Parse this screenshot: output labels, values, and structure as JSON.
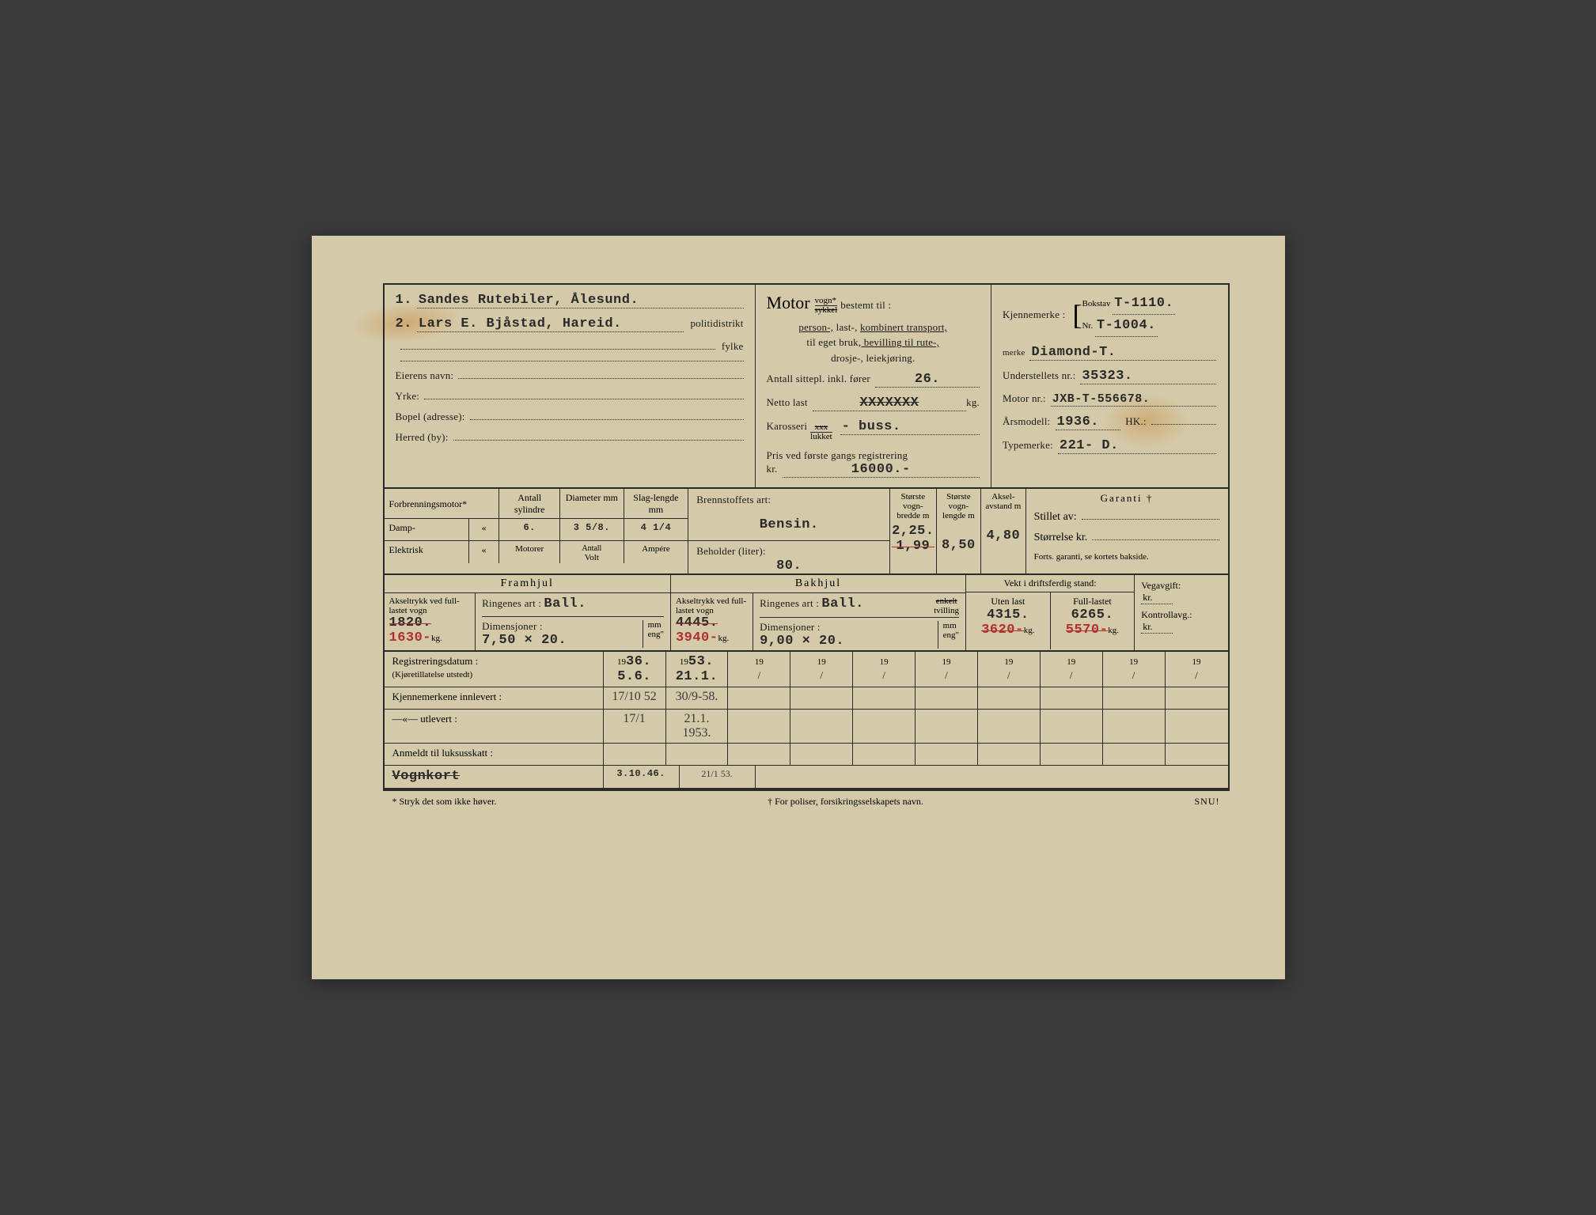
{
  "owners": {
    "line1_num": "1.",
    "line1": "Sandes Rutebiler, Ålesund.",
    "line2_num": "2.",
    "line2": "Lars E. Bjåstad, Hareid."
  },
  "left_labels": {
    "politidistrikt": "politidistrikt",
    "fylke": "fylke",
    "eierens_navn": "Eierens navn:",
    "yrke": "Yrke:",
    "bopel": "Bopel (adresse):",
    "herred": "Herred (by):"
  },
  "motor": {
    "heading": "Motor",
    "vogn": "vogn*",
    "sykkel": "sykkel",
    "bestemt": " bestemt til :",
    "line1a": "person-,",
    "line1b": " last-, ",
    "line1c": "kombinert transport,",
    "line2a": "til eget bruk,",
    "line2b": " bevilling til rute-,",
    "line3": "drosje-, leiekjøring.",
    "antall_sitte_label": "Antall sittepl. inkl. fører",
    "antall_sitte": "26.",
    "netto_label": "Netto last",
    "netto_x": "XXXXXXX",
    "netto_unit": "kg.",
    "karosseri_label": "Karosseri",
    "karosseri_top": "xxx",
    "karosseri_bot": "lukket",
    "karosseri_val": "- buss.",
    "pris_label": "Pris ved første gangs registrering",
    "pris_kr": "kr.",
    "pris_val": "16000.-"
  },
  "right": {
    "kjennemerke_label": "Kjennemerke :",
    "bokstav_label": "Bokstav",
    "bokstav": "T-1110.",
    "nr_label": "Nr.",
    "nr": "T-1004.",
    "merke_label": "merke",
    "merke": "Diamond-T.",
    "understell_label": "Understellets nr.:",
    "understell": "35323.",
    "motornr_label": "Motor nr.:",
    "motornr": "JXB-T-556678.",
    "arsmodell_label": "Årsmodell:",
    "arsmodell": "1936.",
    "hk_label": "HK.:",
    "typemerke_label": "Typemerke:",
    "typemerke": "221- D."
  },
  "engine": {
    "forbrennings": "Forbrenningsmotor*",
    "damp": "Damp-",
    "elektrisk": "Elektrisk",
    "quote": "«",
    "antall_syl": "Antall sylindre",
    "diameter": "Diameter mm",
    "slag": "Slag-lengde mm",
    "motorer": "Motorer",
    "antall": "Antall",
    "volt": "Volt",
    "ampere": "Ampére",
    "syl_val": "6.",
    "dia_val": "3 5/8.",
    "slag_val": "4 1/4",
    "brennstoff_label": "Brennstoffets art:",
    "brennstoff": "Bensin.",
    "beholder_label": "Beholder (liter):",
    "beholder": "80.",
    "bredde_label": "Største vogn-bredde m",
    "lengde_label": "Største vogn-lengde m",
    "aksel_label": "Aksel-avstand m",
    "bredde1": "2,25.",
    "bredde2": "1,99",
    "lengde": "8,50",
    "aksel": "4,80",
    "garanti": "Garanti †",
    "stillet": "Stillet av:",
    "storrelse": "Størrelse kr.",
    "forts": "Forts. garanti, se kortets bakside."
  },
  "wheels": {
    "framhjul": "Framhjul",
    "bakhjul": "Bakhjul",
    "aksel_label": "Akseltrykk ved full-lastet vogn",
    "ringenes": "Ringenes art :",
    "dim_label": "Dimensjoner :",
    "mm_eng": "mm\neng\"",
    "enkelt": "enkelt",
    "tvilling": "tvilling",
    "front_aksel1": "1820.",
    "front_aksel2": "1630-",
    "kg": "kg.",
    "front_ring": "Ball.",
    "front_dim": "7,50 × 20.",
    "rear_aksel1": "4445.",
    "rear_aksel2": "3940-",
    "rear_ring": "Ball.",
    "rear_dim": "9,00 × 20.",
    "vekt_header": "Vekt i driftsferdig stand:",
    "uten_label": "Uten last",
    "full_label": "Full-lastet",
    "uten1": "4315.",
    "uten2": "3620-",
    "full1": "6265.",
    "full2": "5570-",
    "vegavgift": "Vegavgift:",
    "kontroll": "Kontrollavg.:",
    "kr": "kr."
  },
  "reg": {
    "label1": "Registreringsdatum :",
    "label1sub": "(Kjøretillatelse utstedt)",
    "label2": "Kjennemerkene innlevert :",
    "label3": "—«—       utlevert :",
    "label4": "Anmeldt til luksusskatt :",
    "vognkort": "Vognkort",
    "years": [
      "36.",
      "53.",
      "",
      "",
      "",
      "",
      "",
      "",
      "",
      ""
    ],
    "year_prefix": "19",
    "r1": [
      "5.6.",
      "21.1.",
      "/",
      "/",
      "/",
      "/",
      "/",
      "/",
      "/",
      "/"
    ],
    "r2": [
      "17/10 52",
      "30/9-58.",
      "",
      "",
      "",
      "",
      "",
      "",
      "",
      ""
    ],
    "r3": [
      "17/1",
      "21.1. 1953.",
      "",
      "",
      "",
      "",
      "",
      "",
      "",
      ""
    ],
    "r4a": "3.10.46.",
    "r4b": "21/1 53."
  },
  "footer": {
    "left": "* Stryk det som ikke høver.",
    "mid": "† For poliser, forsikringsselskapets navn.",
    "right": "SNU!"
  }
}
